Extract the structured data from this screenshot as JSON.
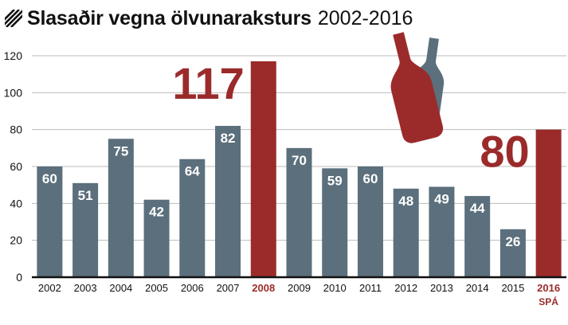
{
  "title": "Slasaðir vegna ölvunaraksturs",
  "title_years": "2002-2016",
  "colors": {
    "normal_bar": "#5b6f7c",
    "highlight_bar": "#9b2b2b",
    "highlight_text": "#9b2b2b",
    "grid": "#bbbbbb",
    "axis": "#111111"
  },
  "icon": "beer-bottles-icon",
  "chart_data": {
    "type": "bar",
    "categories": [
      "2002",
      "2003",
      "2004",
      "2005",
      "2006",
      "2007",
      "2008",
      "2009",
      "2010",
      "2011",
      "2012",
      "2013",
      "2014",
      "2015",
      "2016"
    ],
    "category_sublabels": {
      "2016": "SPÁ"
    },
    "values": [
      60,
      51,
      75,
      42,
      64,
      82,
      117,
      70,
      59,
      60,
      48,
      49,
      44,
      26,
      80
    ],
    "highlighted": [
      "2008",
      "2016"
    ],
    "ylim": [
      0,
      120
    ],
    "yticks": [
      0,
      20,
      40,
      60,
      80,
      100,
      120
    ],
    "grid": true,
    "xlabel": "",
    "ylabel": ""
  }
}
